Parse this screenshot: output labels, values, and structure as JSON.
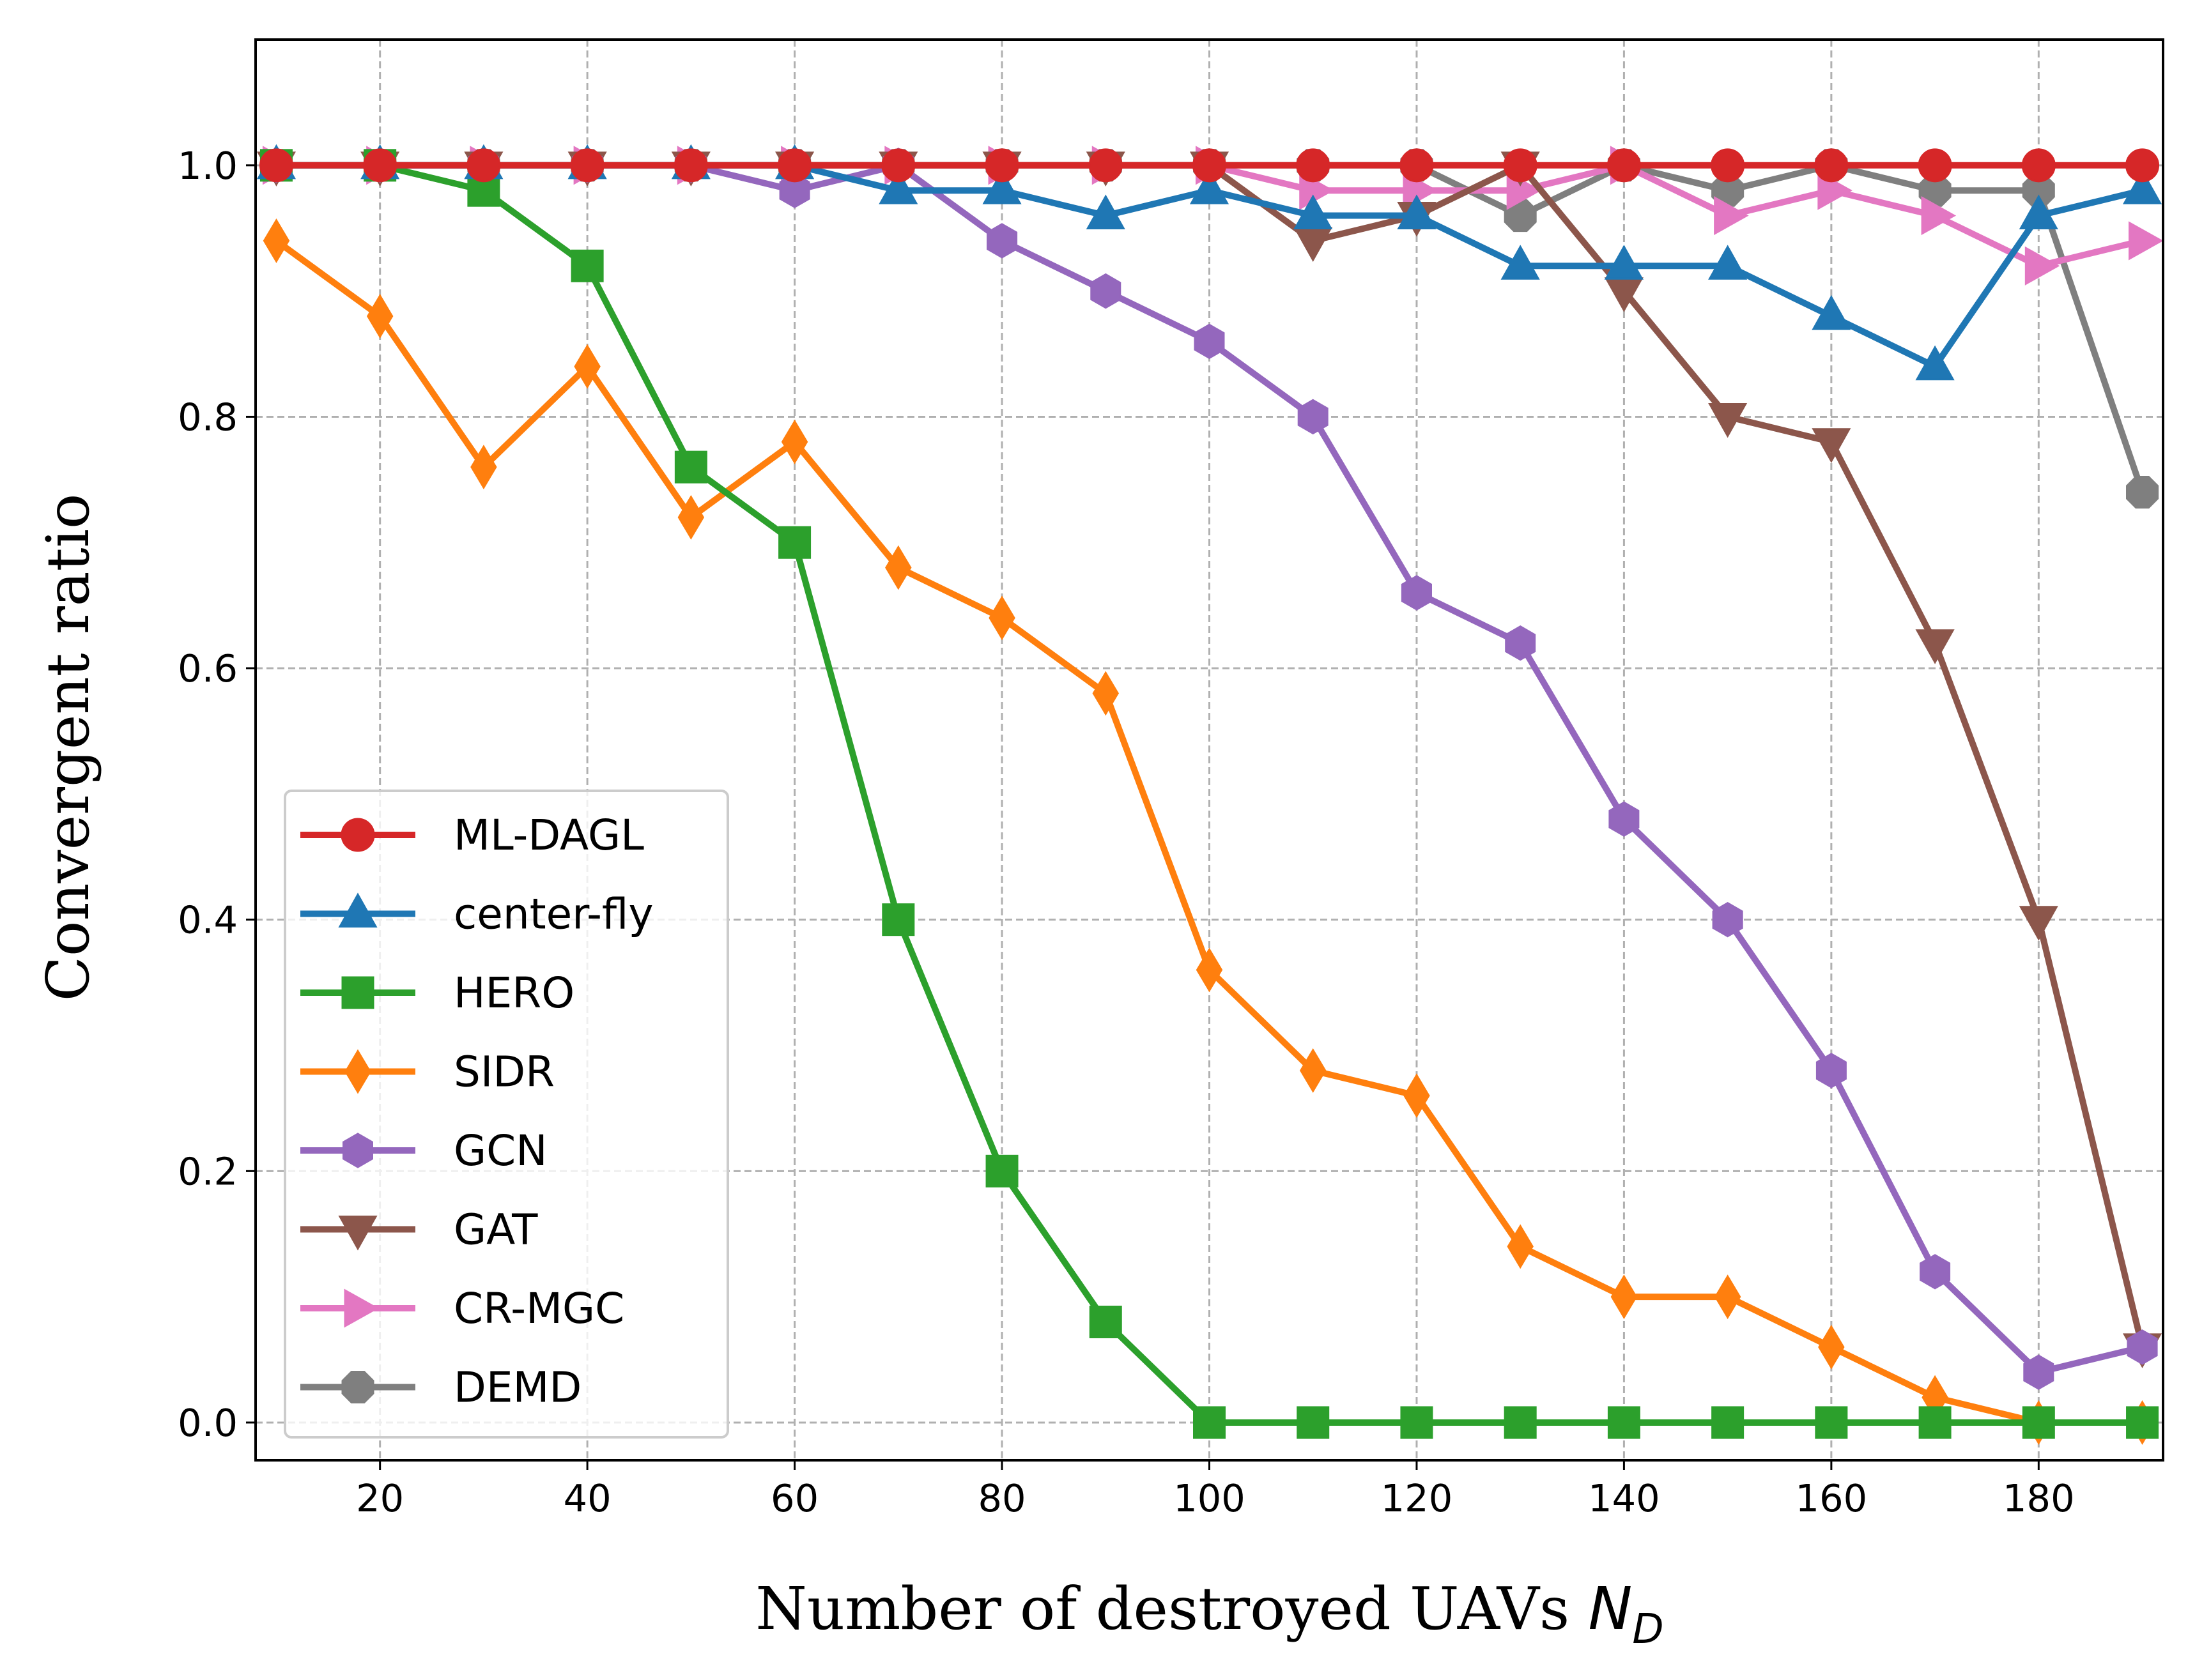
{
  "chart_data": {
    "type": "line",
    "xlabel": "Number of destroyed UAVs N_D",
    "xlabel_text": "Number of destroyed UAVs ",
    "xlabel_symbol": "N",
    "xlabel_subscript": "D",
    "ylabel": "Convergent ratio",
    "xlim": [
      8,
      192
    ],
    "ylim": [
      -0.03,
      1.1
    ],
    "grid": true,
    "legend_position": "lower left",
    "x": [
      10,
      20,
      30,
      40,
      50,
      60,
      70,
      80,
      90,
      100,
      110,
      120,
      130,
      140,
      150,
      160,
      170,
      180,
      190
    ],
    "xticks": [
      20,
      40,
      60,
      80,
      100,
      120,
      140,
      160,
      180
    ],
    "xtick_labels": [
      "20",
      "40",
      "60",
      "80",
      "100",
      "120",
      "140",
      "160",
      "180"
    ],
    "yticks": [
      0.0,
      0.2,
      0.4,
      0.6,
      0.8,
      1.0
    ],
    "ytick_labels": [
      "0.0",
      "0.2",
      "0.4",
      "0.6",
      "0.8",
      "1.0"
    ],
    "series": [
      {
        "name": "ML-DAGL",
        "color": "#d62728",
        "marker": "circle",
        "values": [
          1,
          1,
          1,
          1,
          1,
          1,
          1,
          1,
          1,
          1,
          1,
          1,
          1,
          1,
          1,
          1,
          1,
          1,
          1
        ]
      },
      {
        "name": "center-fly",
        "color": "#1f77b4",
        "marker": "triangle-up",
        "values": [
          1,
          1,
          1,
          1,
          1,
          1,
          0.98,
          0.98,
          0.96,
          0.98,
          0.96,
          0.96,
          0.92,
          0.92,
          0.92,
          0.88,
          0.84,
          0.96,
          0.98
        ]
      },
      {
        "name": "HERO",
        "color": "#2ca02c",
        "marker": "square",
        "values": [
          1,
          1,
          0.98,
          0.92,
          0.76,
          0.7,
          0.4,
          0.2,
          0.08,
          0,
          0,
          0,
          0,
          0,
          0,
          0,
          0,
          0,
          0
        ]
      },
      {
        "name": "SIDR",
        "color": "#ff7f0e",
        "marker": "thin-diamond",
        "values": [
          0.94,
          0.88,
          0.76,
          0.84,
          0.72,
          0.78,
          0.68,
          0.64,
          0.58,
          0.36,
          0.28,
          0.26,
          0.14,
          0.1,
          0.1,
          0.06,
          0.02,
          0,
          0
        ]
      },
      {
        "name": "GCN",
        "color": "#9467bd",
        "marker": "hexagon",
        "values": [
          1,
          1,
          1,
          1,
          1,
          0.98,
          1,
          0.94,
          0.9,
          0.86,
          0.8,
          0.66,
          0.62,
          0.48,
          0.4,
          0.28,
          0.12,
          0.04,
          0.06
        ]
      },
      {
        "name": "GAT",
        "color": "#8c564b",
        "marker": "triangle-down",
        "values": [
          1,
          1,
          1,
          1,
          1,
          1,
          1,
          1,
          1,
          1,
          0.94,
          0.96,
          1,
          0.9,
          0.8,
          0.78,
          0.62,
          0.4,
          0.06
        ]
      },
      {
        "name": "CR-MGC",
        "color": "#e377c2",
        "marker": "triangle-right",
        "values": [
          1,
          1,
          1,
          1,
          1,
          1,
          1,
          1,
          1,
          1,
          0.98,
          0.98,
          0.98,
          1,
          0.96,
          0.98,
          0.96,
          0.92,
          0.94
        ]
      },
      {
        "name": "DEMD",
        "color": "#7f7f7f",
        "marker": "octagon",
        "values": [
          1,
          1,
          1,
          1,
          1,
          1,
          1,
          1,
          1,
          1,
          1,
          1,
          0.96,
          1,
          0.98,
          1,
          0.98,
          0.98,
          0.74
        ]
      }
    ]
  }
}
